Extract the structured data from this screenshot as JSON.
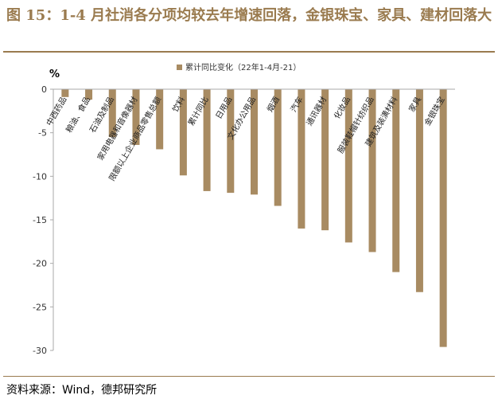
{
  "title": "图 15：1-4 月社消各分项均较去年增速回落，金银珠宝、家具、建材回落大",
  "source": "资料来源：Wind，德邦研究所",
  "colors": {
    "bar": "#a88b62",
    "accent": "#9a7b4f",
    "axis": "#aaaaaa"
  },
  "chart_data": {
    "type": "bar",
    "ylabel": "%",
    "ylim": [
      -30,
      0
    ],
    "yticks": [
      0,
      -5,
      -10,
      -15,
      -20,
      -25,
      -30
    ],
    "grid": false,
    "legend_position": "top",
    "categories": [
      "中西药品",
      "粮油、食品",
      "石油及制品",
      "家用电器和音像器材",
      "限额以上企业商品零售总额",
      "饮料",
      "累计同比",
      "日用品",
      "文化办公用品",
      "烟酒",
      "汽车",
      "通讯器材",
      "化妆品",
      "服装鞋帽针纺织品",
      "建筑及装潢材料",
      "家具",
      "金银珠宝"
    ],
    "series": [
      {
        "name": "累计同比变化（22年1-4月-21）",
        "values": [
          -0.9,
          -1.2,
          -5.5,
          -6.4,
          -6.9,
          -9.9,
          -11.7,
          -11.9,
          -12.1,
          -13.4,
          -16.0,
          -16.2,
          -17.6,
          -18.7,
          -21.0,
          -23.3,
          -29.6
        ]
      }
    ]
  }
}
